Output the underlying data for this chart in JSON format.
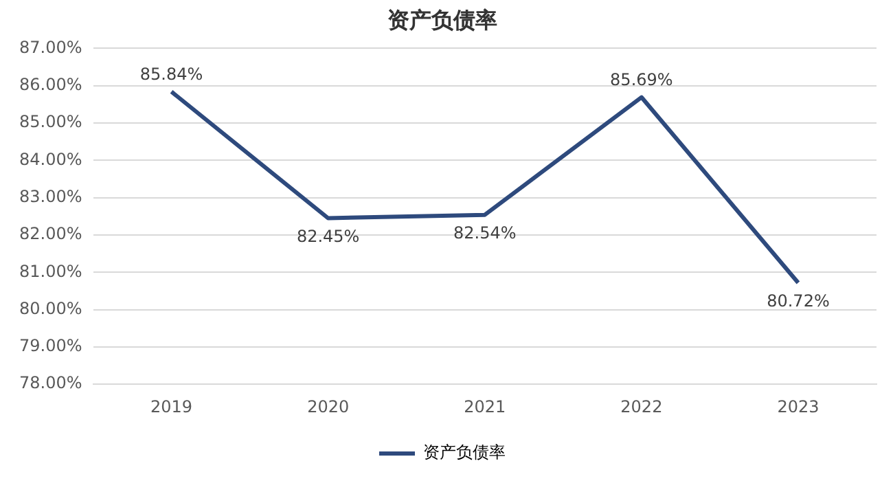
{
  "chart_data": {
    "type": "line",
    "title": "资产负债率",
    "categories": [
      "2019",
      "2020",
      "2021",
      "2022",
      "2023"
    ],
    "series": [
      {
        "name": "资产负债率",
        "color": "#2e4a7d",
        "values": [
          85.84,
          82.45,
          82.54,
          85.69,
          80.72
        ]
      }
    ],
    "ylim": [
      78,
      87
    ],
    "yticks": [
      {
        "value": 78,
        "label": "78.00%"
      },
      {
        "value": 79,
        "label": "79.00%"
      },
      {
        "value": 80,
        "label": "80.00%"
      },
      {
        "value": 81,
        "label": "81.00%"
      },
      {
        "value": 82,
        "label": "82.00%"
      },
      {
        "value": 83,
        "label": "83.00%"
      },
      {
        "value": 84,
        "label": "84.00%"
      },
      {
        "value": 85,
        "label": "85.00%"
      },
      {
        "value": 86,
        "label": "86.00%"
      },
      {
        "value": 87,
        "label": "87.00%"
      }
    ],
    "value_labels": [
      "85.84%",
      "82.45%",
      "82.54%",
      "85.69%",
      "80.72%"
    ],
    "grid": "y",
    "legend": "bottom",
    "marker": "none",
    "line_style": "solid"
  }
}
